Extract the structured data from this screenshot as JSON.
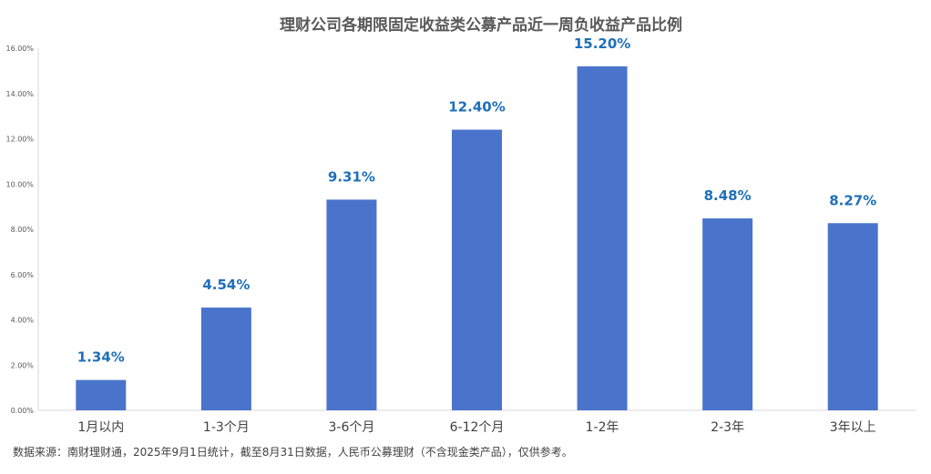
{
  "chart_data": {
    "type": "bar",
    "title": "理财公司各期限固定收益类公募产品近一周负收益产品比例",
    "categories": [
      "1月以内",
      "1-3个月",
      "3-6个月",
      "6-12个月",
      "1-2年",
      "2-3年",
      "3年以上"
    ],
    "values": [
      1.34,
      4.54,
      9.31,
      12.4,
      15.2,
      8.48,
      8.27
    ],
    "data_labels": [
      "1.34%",
      "4.54%",
      "9.31%",
      "12.40%",
      "15.20%",
      "8.48%",
      "8.27%"
    ],
    "y_ticks": [
      "0.00%",
      "2.00%",
      "4.00%",
      "6.00%",
      "8.00%",
      "10.00%",
      "12.00%",
      "14.00%",
      "16.00%"
    ],
    "ylim": [
      0,
      16
    ],
    "xlabel": "",
    "ylabel": "",
    "grid": false,
    "bar_color": "#4a74cc",
    "label_color": "#1f6fb8"
  },
  "source_note": "数据来源：南财理财通，2025年9月1日统计，截至8月31日数据，人民币公募理财（不含现金类产品），仅供参考。"
}
